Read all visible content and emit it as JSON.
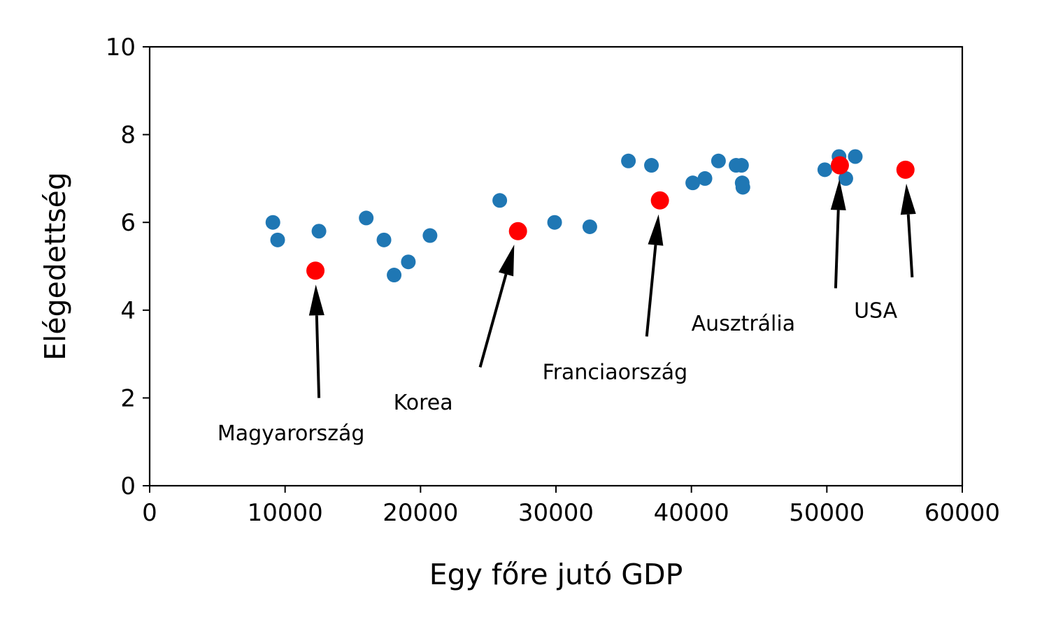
{
  "chart_data": {
    "type": "scatter",
    "title": "",
    "xlabel": "Egy főre jutó GDP",
    "ylabel": "Elégedettség",
    "xlim": [
      0,
      60000
    ],
    "ylim": [
      0,
      10
    ],
    "xticks": [
      "0",
      "10000",
      "20000",
      "30000",
      "40000",
      "50000",
      "60000"
    ],
    "yticks": [
      "0",
      "2",
      "4",
      "6",
      "8",
      "10"
    ],
    "grid": false,
    "legend": "none",
    "colors": {
      "base": "#1f77b4",
      "highlight": "#ff0000",
      "arrow": "#000000"
    },
    "series": [
      {
        "points": [
          {
            "x": 9100,
            "y": 6.0
          },
          {
            "x": 9450,
            "y": 5.6
          },
          {
            "x": 12500,
            "y": 5.8
          },
          {
            "x": 15990,
            "y": 6.1
          },
          {
            "x": 17300,
            "y": 5.6
          },
          {
            "x": 18050,
            "y": 4.8
          },
          {
            "x": 19100,
            "y": 5.1
          },
          {
            "x": 20700,
            "y": 5.7
          },
          {
            "x": 25850,
            "y": 6.5
          },
          {
            "x": 29900,
            "y": 6.0
          },
          {
            "x": 32500,
            "y": 5.9
          },
          {
            "x": 35350,
            "y": 7.4
          },
          {
            "x": 37050,
            "y": 7.3
          },
          {
            "x": 40100,
            "y": 6.9
          },
          {
            "x": 41000,
            "y": 7.0
          },
          {
            "x": 42000,
            "y": 7.4
          },
          {
            "x": 43300,
            "y": 7.3
          },
          {
            "x": 43700,
            "y": 7.3
          },
          {
            "x": 43750,
            "y": 6.9
          },
          {
            "x": 43800,
            "y": 6.8
          },
          {
            "x": 49850,
            "y": 7.2
          },
          {
            "x": 50900,
            "y": 7.5
          },
          {
            "x": 51400,
            "y": 7.0
          },
          {
            "x": 52100,
            "y": 7.5
          }
        ]
      },
      {
        "points": [
          {
            "x": 12240,
            "y": 4.9,
            "label": "Magyarország",
            "text_x": 5000,
            "text_y": 1.0,
            "arrow_from": [
              12500,
              2.0
            ]
          },
          {
            "x": 27195,
            "y": 5.8,
            "label": "Korea",
            "text_x": 18000,
            "text_y": 1.7,
            "arrow_from": [
              24400,
              2.7
            ]
          },
          {
            "x": 37675,
            "y": 6.5,
            "label": "Franciaország",
            "text_x": 29000,
            "text_y": 2.4,
            "arrow_from": [
              36700,
              3.4
            ]
          },
          {
            "x": 50962,
            "y": 7.3,
            "label": "Ausztrália",
            "text_x": 40000,
            "text_y": 3.5,
            "arrow_from": [
              50650,
              4.5
            ]
          },
          {
            "x": 55805,
            "y": 7.2,
            "label": "USA",
            "text_x": 52000,
            "text_y": 3.8,
            "arrow_from": [
              56300,
              4.75
            ]
          }
        ]
      }
    ]
  }
}
